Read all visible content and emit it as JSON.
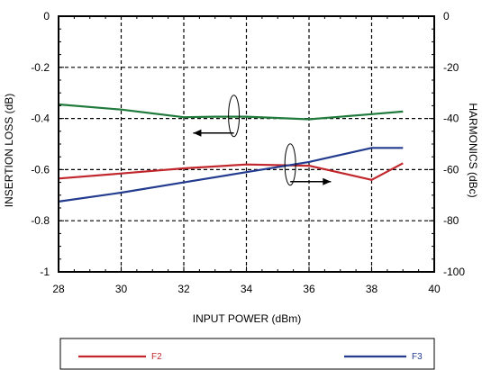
{
  "chart_data": {
    "type": "line",
    "xlabel": "INPUT POWER (dBm)",
    "ylabel_left": "INSERTION LOSS (dB)",
    "ylabel_right": "HARMONICS (dBc)",
    "xlim": [
      28,
      40
    ],
    "ylim_left": [
      -1,
      0
    ],
    "ylim_right": [
      -100,
      0
    ],
    "x_ticks": [
      "28",
      "30",
      "32",
      "34",
      "36",
      "38",
      "40"
    ],
    "y_ticks_left": [
      "0",
      "-0.2",
      "-0.4",
      "-0.6",
      "-0.8",
      "-1"
    ],
    "y_ticks_right": [
      "0",
      "-20",
      "-40",
      "-60",
      "-80",
      "-100"
    ],
    "grid": true,
    "legend_position": "bottom",
    "series": [
      {
        "axis": "left",
        "color": "#1f7a3c",
        "x": [
          28,
          30,
          32,
          33,
          34,
          36,
          38,
          39
        ],
        "y": [
          -0.345,
          -0.365,
          -0.395,
          -0.393,
          -0.393,
          -0.403,
          -0.383,
          -0.373
        ]
      },
      {
        "name": "F2",
        "axis": "right",
        "color": "#c1272d",
        "x": [
          28,
          30,
          32,
          34,
          36,
          38,
          39
        ],
        "y": [
          -63.5,
          -61.5,
          -59.5,
          -58.0,
          -58.5,
          -64.0,
          -57.5
        ]
      },
      {
        "name": "F3",
        "axis": "right",
        "color": "#233c8f",
        "x": [
          28,
          30,
          32,
          34,
          36,
          38,
          39
        ],
        "y": [
          -72.5,
          -69.0,
          -65.0,
          -61.0,
          -57.0,
          -51.5,
          -51.5
        ]
      }
    ],
    "annotations": [
      {
        "target": "left-axis",
        "x": 33.6,
        "y": -0.39,
        "arrow_to_x": 32.3,
        "arrow_direction": "left"
      },
      {
        "target": "right-axis",
        "x": 35.4,
        "y": -58,
        "arrow_to_x": 36.7,
        "arrow_direction": "right"
      }
    ]
  }
}
